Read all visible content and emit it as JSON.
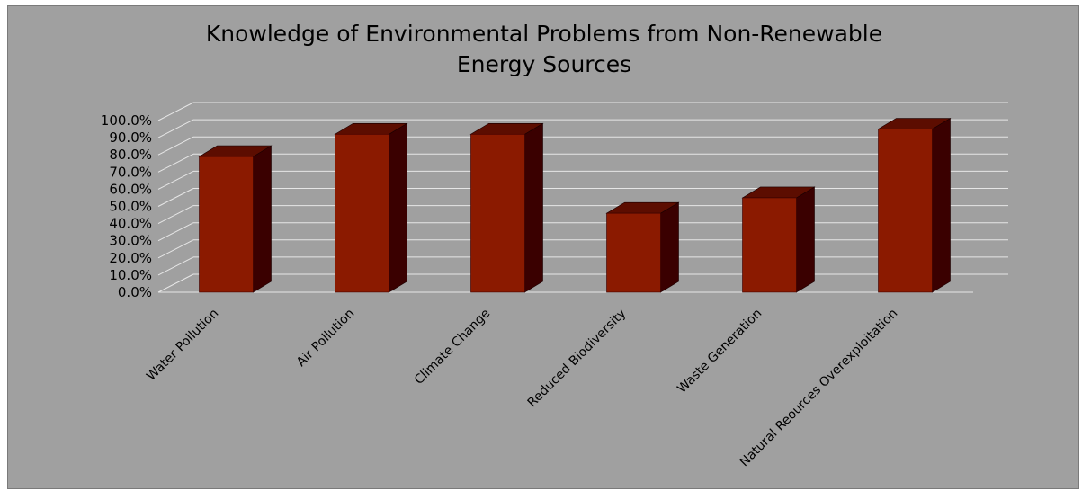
{
  "chart_data": {
    "type": "bar",
    "title_lines": [
      "Knowledge of Environmental Problems from Non-Renewable",
      "Energy Sources"
    ],
    "categories": [
      "Water Pollution",
      "Air Pollution",
      "Climate Change",
      "Reduced Biodiversity",
      "Waste Generation",
      "Natural Reources Overexploitation"
    ],
    "values": [
      0.79,
      0.92,
      0.92,
      0.46,
      0.55,
      0.95
    ],
    "ylim": [
      0,
      1.0
    ],
    "yticks": [
      "0.0%",
      "10.0%",
      "20.0%",
      "30.0%",
      "40.0%",
      "50.0%",
      "60.0%",
      "70.0%",
      "80.0%",
      "90.0%",
      "100.0%"
    ],
    "grid": true,
    "legend": "none",
    "style": "3d-column",
    "colors": {
      "bar_front": "#8b1a00",
      "bar_side": "#3a0000",
      "bar_top": "#5c0d00",
      "plot_background": "#a0a0a0",
      "gridline": "#e6e6e6"
    }
  }
}
